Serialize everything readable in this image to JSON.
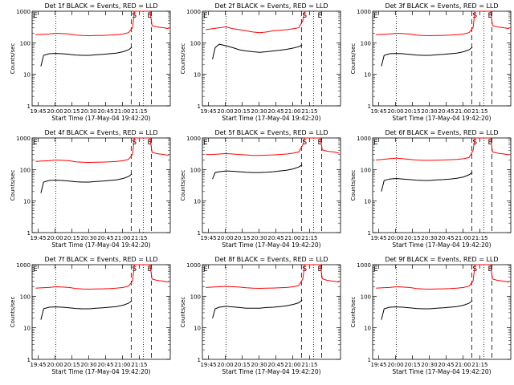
{
  "chart_data": [
    {
      "type": "line",
      "title": "Det 1f BLACK = Events, RED = LLD",
      "xlabel": "Start Time (17-May-04 19:42:20)",
      "ylabel": "Counts/sec",
      "xticks": [
        "19:45",
        "20:00",
        "20:15",
        "20:30",
        "20:45",
        "21:00",
        "21:15"
      ],
      "yticks": [
        "1",
        "10",
        "100",
        "1000"
      ],
      "ylim": [
        1,
        1000
      ],
      "yscale": "log",
      "markers": [
        "S",
        "E"
      ],
      "series": [
        {
          "color": "#000000",
          "x": [
            0.08,
            0.12,
            0.2,
            0.3,
            0.4,
            0.5,
            0.6,
            0.7,
            0.8,
            0.9,
            1.0,
            1.1,
            1.2,
            1.3,
            1.38,
            1.43
          ],
          "y": [
            18,
            40,
            45,
            46,
            45,
            43,
            41,
            40,
            40,
            42,
            43,
            45,
            47,
            52,
            60,
            72
          ]
        },
        {
          "color": "#ff0000",
          "x": [
            0.0,
            0.1,
            0.2,
            0.3,
            0.4,
            0.5,
            0.6,
            0.7,
            0.8,
            0.9,
            1.0,
            1.1,
            1.2,
            1.3,
            1.38,
            1.44,
            1.47,
            1.5,
            1.7,
            1.73,
            1.8,
            1.9,
            1.98
          ],
          "y": [
            180,
            185,
            190,
            200,
            195,
            190,
            175,
            170,
            168,
            170,
            172,
            175,
            180,
            190,
            210,
            300,
            1000,
            1000,
            1000,
            350,
            320,
            300,
            280
          ]
        }
      ]
    },
    {
      "type": "line",
      "title": "Det 2f BLACK = Events, RED = LLD",
      "xlabel": "Start Time (17-May-04 19:42:20)",
      "ylabel": "Counts/sec",
      "xticks": [
        "19:45",
        "20:00",
        "20:15",
        "20:30",
        "20:45",
        "21:00",
        "21:15"
      ],
      "yticks": [
        "1",
        "10",
        "100",
        "1000"
      ],
      "ylim": [
        1,
        1000
      ],
      "yscale": "log",
      "markers": [
        "S",
        "E"
      ],
      "series": [
        {
          "color": "#000000",
          "x": [
            0.1,
            0.14,
            0.2,
            0.3,
            0.4,
            0.5,
            0.6,
            0.7,
            0.8,
            0.9,
            1.0,
            1.1,
            1.2,
            1.3,
            1.38,
            1.43
          ],
          "y": [
            30,
            70,
            90,
            80,
            70,
            60,
            55,
            52,
            50,
            52,
            55,
            58,
            62,
            68,
            75,
            85
          ]
        },
        {
          "color": "#ff0000",
          "x": [
            0.0,
            0.1,
            0.2,
            0.3,
            0.4,
            0.5,
            0.6,
            0.7,
            0.8,
            0.9,
            1.0,
            1.1,
            1.2,
            1.3,
            1.38,
            1.44,
            1.47
          ],
          "y": [
            260,
            280,
            300,
            320,
            280,
            260,
            240,
            220,
            210,
            220,
            240,
            250,
            260,
            280,
            300,
            500,
            1000
          ]
        }
      ]
    },
    {
      "type": "line",
      "title": "Det 3f BLACK = Events, RED = LLD",
      "xlabel": "Start Time (17-May-04 19:42:20)",
      "ylabel": "Counts/sec",
      "xticks": [
        "19:45",
        "20:00",
        "20:15",
        "20:30",
        "20:45",
        "21:00",
        "21:15"
      ],
      "yticks": [
        "1",
        "10",
        "100",
        "1000"
      ],
      "ylim": [
        1,
        1000
      ],
      "yscale": "log",
      "markers": [
        "S",
        "E"
      ],
      "series": [
        {
          "color": "#000000",
          "x": [
            0.08,
            0.12,
            0.2,
            0.3,
            0.4,
            0.5,
            0.6,
            0.7,
            0.8,
            0.9,
            1.0,
            1.1,
            1.2,
            1.3,
            1.38,
            1.43
          ],
          "y": [
            18,
            40,
            45,
            46,
            45,
            43,
            41,
            40,
            40,
            42,
            43,
            45,
            47,
            52,
            60,
            72
          ]
        },
        {
          "color": "#ff0000",
          "x": [
            0.0,
            0.1,
            0.2,
            0.3,
            0.4,
            0.5,
            0.6,
            0.7,
            0.8,
            0.9,
            1.0,
            1.1,
            1.2,
            1.3,
            1.38,
            1.44,
            1.47,
            1.5,
            1.7,
            1.73,
            1.8,
            1.9,
            1.98
          ],
          "y": [
            180,
            185,
            190,
            200,
            195,
            190,
            175,
            170,
            168,
            170,
            172,
            175,
            180,
            190,
            210,
            300,
            1000,
            1000,
            1000,
            350,
            320,
            300,
            280
          ]
        }
      ]
    },
    {
      "type": "line",
      "title": "Det 4f BLACK = Events, RED = LLD",
      "xlabel": "Start Time (17-May-04 19:42:20)",
      "ylabel": "Counts/sec",
      "xticks": [
        "19:45",
        "20:00",
        "20:15",
        "20:30",
        "20:45",
        "21:00",
        "21:15"
      ],
      "yticks": [
        "1",
        "10",
        "100",
        "1000"
      ],
      "ylim": [
        1,
        1000
      ],
      "yscale": "log",
      "markers": [
        "S",
        "E"
      ],
      "series": [
        {
          "color": "#000000",
          "x": [
            0.08,
            0.12,
            0.2,
            0.3,
            0.4,
            0.5,
            0.6,
            0.7,
            0.8,
            0.9,
            1.0,
            1.1,
            1.2,
            1.3,
            1.38,
            1.43
          ],
          "y": [
            18,
            40,
            45,
            46,
            45,
            43,
            41,
            40,
            40,
            42,
            43,
            45,
            47,
            52,
            60,
            72
          ]
        },
        {
          "color": "#ff0000",
          "x": [
            0.0,
            0.1,
            0.2,
            0.3,
            0.4,
            0.5,
            0.6,
            0.7,
            0.8,
            0.9,
            1.0,
            1.1,
            1.2,
            1.3,
            1.38,
            1.44,
            1.47,
            1.5,
            1.7,
            1.73,
            1.8,
            1.9,
            1.98
          ],
          "y": [
            180,
            185,
            190,
            200,
            195,
            190,
            175,
            170,
            168,
            170,
            172,
            175,
            180,
            190,
            210,
            300,
            1000,
            1000,
            1000,
            350,
            320,
            300,
            280
          ]
        }
      ]
    },
    {
      "type": "line",
      "title": "Det 5f BLACK = Events, RED = LLD",
      "xlabel": "Start Time (17-May-04 19:42:20)",
      "ylabel": "Counts/sec",
      "xticks": [
        "19:45",
        "20:00",
        "20:15",
        "20:30",
        "20:45",
        "21:00",
        "21:15"
      ],
      "yticks": [
        "1",
        "10",
        "100",
        "1000"
      ],
      "ylim": [
        1,
        1000
      ],
      "yscale": "log",
      "markers": [
        "S",
        "E"
      ],
      "series": [
        {
          "color": "#000000",
          "x": [
            0.1,
            0.14,
            0.2,
            0.3,
            0.4,
            0.5,
            0.6,
            0.7,
            0.8,
            0.9,
            1.0,
            1.1,
            1.2,
            1.3,
            1.38,
            1.43
          ],
          "y": [
            50,
            80,
            85,
            90,
            88,
            85,
            82,
            80,
            80,
            82,
            85,
            90,
            95,
            105,
            120,
            140
          ]
        },
        {
          "color": "#ff0000",
          "x": [
            0.0,
            0.1,
            0.2,
            0.3,
            0.4,
            0.5,
            0.6,
            0.7,
            0.8,
            0.9,
            1.0,
            1.1,
            1.2,
            1.3,
            1.38,
            1.44,
            1.47,
            1.5,
            1.7,
            1.73,
            1.8,
            1.9,
            1.98
          ],
          "y": [
            300,
            300,
            310,
            320,
            310,
            300,
            290,
            280,
            280,
            285,
            290,
            300,
            310,
            330,
            360,
            600,
            1000,
            1000,
            1000,
            420,
            380,
            360,
            330
          ]
        }
      ]
    },
    {
      "type": "line",
      "title": "Det 6f BLACK = Events, RED = LLD",
      "xlabel": "Start Time (17-May-04 19:42:20)",
      "ylabel": "Counts/sec",
      "xticks": [
        "19:45",
        "20:00",
        "20:15",
        "20:30",
        "20:45",
        "21:00",
        "21:15"
      ],
      "yticks": [
        "1",
        "10",
        "100",
        "1000"
      ],
      "ylim": [
        1,
        1000
      ],
      "yscale": "log",
      "markers": [
        "S",
        "E"
      ],
      "series": [
        {
          "color": "#000000",
          "x": [
            0.08,
            0.12,
            0.2,
            0.3,
            0.4,
            0.5,
            0.6,
            0.7,
            0.8,
            0.9,
            1.0,
            1.1,
            1.2,
            1.3,
            1.38,
            1.43
          ],
          "y": [
            20,
            45,
            50,
            52,
            50,
            48,
            46,
            45,
            45,
            47,
            48,
            50,
            53,
            58,
            68,
            80
          ]
        },
        {
          "color": "#ff0000",
          "x": [
            0.0,
            0.1,
            0.2,
            0.3,
            0.4,
            0.5,
            0.6,
            0.7,
            0.8,
            0.9,
            1.0,
            1.1,
            1.2,
            1.3,
            1.38,
            1.44,
            1.47,
            1.5,
            1.7,
            1.73,
            1.8,
            1.9,
            1.98
          ],
          "y": [
            200,
            210,
            220,
            230,
            220,
            210,
            200,
            195,
            195,
            198,
            200,
            205,
            210,
            220,
            240,
            400,
            1000,
            1000,
            1000,
            360,
            330,
            310,
            290
          ]
        }
      ]
    },
    {
      "type": "line",
      "title": "Det 7f BLACK = Events, RED = LLD",
      "xlabel": "Start Time (17-May-04 19:42:20)",
      "ylabel": "Counts/sec",
      "xticks": [
        "19:45",
        "20:00",
        "20:15",
        "20:30",
        "20:45",
        "21:00",
        "21:15"
      ],
      "yticks": [
        "1",
        "10",
        "100",
        "1000"
      ],
      "ylim": [
        1,
        1000
      ],
      "yscale": "log",
      "markers": [
        "S",
        "E"
      ],
      "series": [
        {
          "color": "#000000",
          "x": [
            0.08,
            0.12,
            0.2,
            0.3,
            0.4,
            0.5,
            0.6,
            0.7,
            0.8,
            0.9,
            1.0,
            1.1,
            1.2,
            1.3,
            1.38,
            1.43
          ],
          "y": [
            18,
            40,
            45,
            46,
            45,
            43,
            41,
            40,
            40,
            42,
            43,
            45,
            47,
            52,
            60,
            72
          ]
        },
        {
          "color": "#ff0000",
          "x": [
            0.0,
            0.1,
            0.2,
            0.3,
            0.4,
            0.5,
            0.6,
            0.7,
            0.8,
            0.9,
            1.0,
            1.1,
            1.2,
            1.3,
            1.38,
            1.44,
            1.47,
            1.5,
            1.7,
            1.73,
            1.8,
            1.9,
            1.98
          ],
          "y": [
            180,
            185,
            190,
            200,
            195,
            190,
            175,
            170,
            168,
            170,
            172,
            175,
            180,
            190,
            210,
            300,
            1000,
            1000,
            1000,
            350,
            320,
            300,
            280
          ]
        }
      ]
    },
    {
      "type": "line",
      "title": "Det 8f BLACK = Events, RED = LLD",
      "xlabel": "Start Time (17-May-04 19:42:20)",
      "ylabel": "Counts/sec",
      "xticks": [
        "19:45",
        "20:00",
        "20:15",
        "20:30",
        "20:45",
        "21:00",
        "21:15"
      ],
      "yticks": [
        "1",
        "10",
        "100",
        "1000"
      ],
      "ylim": [
        1,
        1000
      ],
      "yscale": "log",
      "markers": [
        "S",
        "E"
      ],
      "series": [
        {
          "color": "#000000",
          "x": [
            0.1,
            0.14,
            0.2,
            0.3,
            0.4,
            0.5,
            0.6,
            0.7,
            0.8,
            0.9,
            1.0,
            1.1,
            1.2,
            1.3,
            1.38,
            1.43
          ],
          "y": [
            20,
            40,
            45,
            48,
            46,
            44,
            42,
            42,
            42,
            44,
            45,
            47,
            50,
            55,
            62,
            75
          ]
        },
        {
          "color": "#ff0000",
          "x": [
            0.0,
            0.1,
            0.2,
            0.3,
            0.4,
            0.5,
            0.6,
            0.7,
            0.8,
            0.9,
            1.0,
            1.1,
            1.2,
            1.3,
            1.38,
            1.44,
            1.47,
            1.5,
            1.7,
            1.73,
            1.8,
            1.9,
            1.98
          ],
          "y": [
            190,
            195,
            200,
            205,
            200,
            195,
            185,
            180,
            178,
            180,
            182,
            185,
            190,
            200,
            220,
            350,
            1000,
            1000,
            1000,
            360,
            320,
            300,
            280
          ]
        }
      ]
    },
    {
      "type": "line",
      "title": "Det 9f BLACK = Events, RED = LLD",
      "xlabel": "Start Time (17-May-04 19:42:20)",
      "ylabel": "Counts/sec",
      "xticks": [
        "19:45",
        "20:00",
        "20:15",
        "20:30",
        "20:45",
        "21:00",
        "21:15"
      ],
      "yticks": [
        "1",
        "10",
        "100",
        "1000"
      ],
      "ylim": [
        1,
        1000
      ],
      "yscale": "log",
      "markers": [
        "S",
        "E"
      ],
      "series": [
        {
          "color": "#000000",
          "x": [
            0.08,
            0.12,
            0.2,
            0.3,
            0.4,
            0.5,
            0.6,
            0.7,
            0.8,
            0.9,
            1.0,
            1.1,
            1.2,
            1.3,
            1.38,
            1.43
          ],
          "y": [
            18,
            40,
            45,
            46,
            45,
            43,
            41,
            40,
            40,
            42,
            43,
            45,
            47,
            52,
            60,
            72
          ]
        },
        {
          "color": "#ff0000",
          "x": [
            0.0,
            0.1,
            0.2,
            0.3,
            0.4,
            0.5,
            0.6,
            0.7,
            0.8,
            0.9,
            1.0,
            1.1,
            1.2,
            1.3,
            1.38,
            1.44,
            1.47,
            1.5,
            1.7,
            1.73,
            1.8,
            1.9,
            1.98
          ],
          "y": [
            180,
            185,
            190,
            200,
            195,
            190,
            175,
            170,
            168,
            170,
            172,
            175,
            180,
            190,
            210,
            300,
            1000,
            1000,
            1000,
            350,
            320,
            300,
            280
          ]
        }
      ]
    }
  ]
}
